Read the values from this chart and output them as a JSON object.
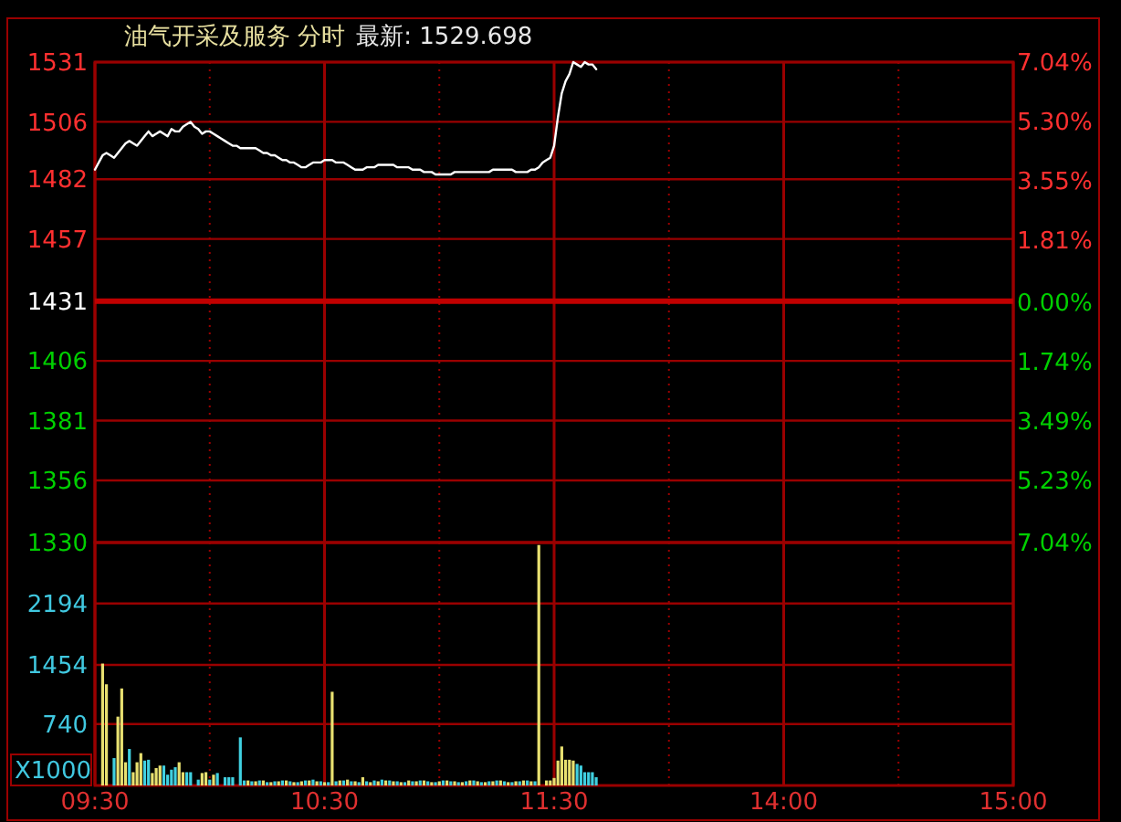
{
  "chart_data": [
    {
      "type": "line",
      "title": "油气开采及服务 分时",
      "subtitle": "最新: 1529.698",
      "categories": [
        null,
        null,
        null,
        null,
        null,
        null,
        null,
        null,
        null,
        null,
        null,
        null,
        null,
        null,
        null,
        null,
        null,
        null,
        null,
        null,
        null,
        null,
        null,
        null,
        null,
        null,
        null,
        null,
        null,
        null,
        null,
        null,
        null,
        null,
        null,
        null,
        null,
        null,
        null,
        null,
        null,
        null,
        null,
        null,
        null,
        null,
        null,
        null,
        null,
        null,
        null,
        null,
        null,
        null,
        null,
        null,
        null,
        null,
        null,
        null,
        null,
        null,
        null,
        null,
        null,
        null,
        null,
        null,
        null,
        null,
        null,
        null,
        null,
        null,
        null,
        null,
        null,
        null,
        null,
        null,
        null,
        null,
        null,
        null,
        null,
        null,
        null,
        null,
        null,
        null,
        null,
        null,
        null,
        null,
        null,
        null,
        null,
        null,
        null,
        null,
        null,
        null,
        null,
        null,
        null,
        null,
        null,
        null,
        null,
        null,
        null,
        null,
        null,
        null,
        null,
        null,
        null,
        null,
        null,
        null,
        null,
        null,
        null,
        null,
        null,
        null,
        null,
        null,
        null,
        null,
        null,
        null,
        null,
        null,
        null,
        null,
        null,
        null,
        null,
        null,
        null,
        null,
        null,
        null,
        null,
        null,
        null,
        null,
        null,
        null,
        null,
        null,
        null,
        null,
        null,
        null,
        null,
        null,
        null,
        null,
        null,
        null,
        null,
        null,
        null,
        null,
        null,
        null,
        null,
        null,
        null,
        null,
        null,
        null,
        null,
        null,
        null,
        null,
        null,
        null,
        null,
        null,
        null,
        null,
        null,
        null,
        null,
        null,
        null,
        null,
        null,
        null,
        null,
        null,
        null,
        null,
        null,
        null,
        null,
        null,
        null,
        null,
        null,
        null,
        null,
        null,
        null,
        null,
        null,
        null,
        null,
        null,
        null,
        null,
        null,
        null,
        null,
        null,
        null,
        null,
        null,
        null,
        null,
        null,
        null,
        null,
        null,
        null,
        null,
        null,
        null,
        null,
        null,
        null,
        null,
        null,
        null,
        null,
        null,
        null,
        null
      ],
      "series": [
        {
          "color": "#ffffff",
          "values": [
            1486,
            1489,
            1492,
            1493,
            1492,
            1491,
            1493,
            1495,
            1497,
            1498,
            1497,
            1496,
            1498,
            1500,
            1502,
            1500,
            1501,
            1502,
            1501,
            1500,
            1503,
            1502,
            1502,
            1504,
            1505,
            1506,
            1504,
            1503,
            1501,
            1502,
            1502,
            1501,
            1500,
            1499,
            1498,
            1497,
            1496,
            1496,
            1495,
            1495,
            1495,
            1495,
            1495,
            1494,
            1493,
            1493,
            1492,
            1492,
            1491,
            1490,
            1490,
            1489,
            1489,
            1488,
            1487,
            1487,
            1488,
            1489,
            1489,
            1489,
            1490,
            1490,
            1490,
            1489,
            1489,
            1489,
            1488,
            1487,
            1486,
            1486,
            1486,
            1487,
            1487,
            1487,
            1488,
            1488,
            1488,
            1488,
            1488,
            1487,
            1487,
            1487,
            1487,
            1486,
            1486,
            1486,
            1485,
            1485,
            1485,
            1484,
            1484,
            1484,
            1484,
            1484,
            1485,
            1485,
            1485,
            1485,
            1485,
            1485,
            1485,
            1485,
            1485,
            1485,
            1486,
            1486,
            1486,
            1486,
            1486,
            1486,
            1485,
            1485,
            1485,
            1485,
            1486,
            1486,
            1487,
            1489,
            1490,
            1491,
            1496,
            1508,
            1518,
            1523,
            1526,
            1531,
            1530,
            1529,
            1531,
            1530,
            1530,
            1528,
            null,
            null,
            null,
            null,
            null,
            null,
            null,
            null,
            null,
            null,
            null,
            null,
            null,
            null,
            null,
            null,
            null,
            null,
            null,
            null,
            null,
            null,
            null,
            null,
            null,
            null,
            null,
            null,
            null,
            null,
            null,
            null,
            null,
            null,
            null,
            null,
            null,
            null,
            null,
            null,
            null,
            null,
            null,
            null,
            null,
            null,
            null,
            null,
            null,
            null,
            null,
            null,
            null,
            null,
            null,
            null,
            null,
            null,
            null,
            null,
            null,
            null,
            null,
            null,
            null,
            null,
            null,
            null,
            null,
            null,
            null,
            null,
            null,
            null,
            null,
            null,
            null,
            null,
            null,
            null,
            null,
            null,
            null,
            null,
            null,
            null,
            null,
            null,
            null,
            null,
            null,
            null,
            null,
            null,
            null,
            null,
            null,
            null,
            null,
            null,
            null,
            null,
            null,
            null,
            null,
            null,
            null,
            null,
            null
          ]
        }
      ],
      "ylim": [
        1330,
        1531
      ],
      "yticks": [
        1330,
        1356,
        1381,
        1406,
        1431,
        1457,
        1482,
        1506,
        1531
      ],
      "y2lim": [
        -7.04,
        7.04
      ],
      "y2ticks": [
        {
          "value": -7.04,
          "label": "7.04%"
        },
        {
          "value": -5.23,
          "label": "5.23%"
        },
        {
          "value": -3.49,
          "label": "3.49%"
        },
        {
          "value": -1.74,
          "label": "1.74%"
        },
        {
          "value": 0,
          "label": "0.00%"
        },
        {
          "value": 1.81,
          "label": "1.81%"
        },
        {
          "value": 3.55,
          "label": "3.55%"
        },
        {
          "value": 5.3,
          "label": "5.30%"
        },
        {
          "value": 7.04,
          "label": "7.04%"
        }
      ],
      "ref_lines": [
        {
          "axis": "y",
          "value": 1431,
          "color": "#c00000"
        }
      ],
      "grid": true,
      "tick_labels": "y"
    },
    {
      "type": "bar",
      "ylabel": "X1000",
      "categories": [
        "09:30",
        null,
        null,
        null,
        null,
        null,
        null,
        null,
        null,
        null,
        null,
        null,
        null,
        null,
        null,
        null,
        null,
        null,
        null,
        null,
        null,
        null,
        null,
        null,
        null,
        null,
        null,
        null,
        null,
        null,
        null,
        null,
        null,
        null,
        null,
        null,
        null,
        null,
        null,
        null,
        null,
        null,
        null,
        null,
        null,
        null,
        null,
        null,
        null,
        null,
        null,
        null,
        null,
        null,
        null,
        null,
        null,
        null,
        null,
        null,
        "10:30",
        null,
        null,
        null,
        null,
        null,
        null,
        null,
        null,
        null,
        null,
        null,
        null,
        null,
        null,
        null,
        null,
        null,
        null,
        null,
        null,
        null,
        null,
        null,
        null,
        null,
        null,
        null,
        null,
        null,
        null,
        null,
        null,
        null,
        null,
        null,
        null,
        null,
        null,
        null,
        null,
        null,
        null,
        null,
        null,
        null,
        null,
        null,
        null,
        null,
        null,
        null,
        null,
        null,
        null,
        null,
        null,
        null,
        null,
        null,
        "11:30",
        null,
        null,
        null,
        null,
        null,
        null,
        null,
        null,
        null,
        null,
        null,
        null,
        null,
        null,
        null,
        null,
        null,
        null,
        null,
        null,
        null,
        null,
        null,
        null,
        null,
        null,
        null,
        null,
        null,
        null,
        null,
        null,
        null,
        null,
        null,
        null,
        null,
        null,
        null,
        null,
        null,
        null,
        null,
        null,
        null,
        null,
        null,
        null,
        null,
        null,
        null,
        null,
        null,
        null,
        null,
        null,
        null,
        null,
        null,
        "14:00",
        null,
        null,
        null,
        null,
        null,
        null,
        null,
        null,
        null,
        null,
        null,
        null,
        null,
        null,
        null,
        null,
        null,
        null,
        null,
        null,
        null,
        null,
        null,
        null,
        null,
        null,
        null,
        null,
        null,
        null,
        null,
        null,
        null,
        null,
        null,
        null,
        null,
        null,
        null,
        null,
        null,
        null,
        null,
        null,
        null,
        null,
        null,
        null,
        null,
        null,
        null,
        null,
        null,
        null,
        null,
        null,
        null,
        null,
        null,
        "15:00"
      ],
      "series": [
        {
          "color": "#e8e070",
          "values": [
            null,
            null,
            1470,
            1220,
            null,
            null,
            830,
            1170,
            280,
            null,
            160,
            280,
            390,
            null,
            null,
            150,
            210,
            240,
            null,
            null,
            null,
            null,
            280,
            160,
            null,
            null,
            null,
            null,
            150,
            160,
            null,
            130,
            null,
            null,
            null,
            null,
            null,
            null,
            null,
            null,
            60,
            null,
            50,
            null,
            60,
            null,
            40,
            null,
            50,
            null,
            60,
            null,
            40,
            null,
            50,
            null,
            60,
            null,
            50,
            null,
            40,
            null,
            1130,
            null,
            60,
            null,
            70,
            null,
            50,
            null,
            100,
            null,
            40,
            null,
            50,
            null,
            60,
            null,
            50,
            null,
            40,
            null,
            60,
            null,
            50,
            null,
            60,
            null,
            40,
            null,
            50,
            null,
            60,
            null,
            50,
            null,
            40,
            null,
            60,
            null,
            50,
            null,
            40,
            null,
            50,
            null,
            60,
            null,
            40,
            null,
            50,
            null,
            60,
            null,
            50,
            null,
            2900,
            null,
            60,
            60,
            90,
            300,
            470,
            310,
            310,
            300,
            null,
            null,
            null,
            null,
            null,
            null,
            null,
            null,
            null,
            null,
            null,
            null,
            null,
            null,
            null,
            null,
            null,
            null,
            null,
            null,
            null,
            null,
            null,
            null,
            null,
            null,
            null,
            null,
            null,
            null,
            null,
            null,
            null,
            null,
            null,
            null,
            null,
            null,
            null,
            null,
            null,
            null,
            null,
            null,
            null,
            null,
            null,
            null,
            null,
            null,
            null,
            null,
            null,
            null,
            null,
            null,
            null,
            null,
            null,
            null,
            null,
            null,
            null,
            null,
            null,
            null,
            null,
            null,
            null,
            null,
            null,
            null,
            null,
            null,
            null,
            null,
            null,
            null,
            null,
            null,
            null,
            null,
            null,
            null,
            null,
            null,
            null,
            null,
            null,
            null,
            null,
            null,
            null,
            null,
            null,
            null,
            null,
            null,
            null,
            null,
            null,
            null,
            null,
            null,
            null,
            null,
            null,
            null,
            null,
            null,
            null,
            null,
            null,
            null,
            null
          ]
        },
        {
          "color": "#40d0e0",
          "values": [
            null,
            null,
            null,
            null,
            null,
            330,
            null,
            null,
            null,
            440,
            null,
            null,
            null,
            300,
            310,
            null,
            null,
            null,
            240,
            130,
            190,
            220,
            null,
            null,
            160,
            160,
            null,
            70,
            null,
            null,
            70,
            null,
            150,
            null,
            100,
            100,
            100,
            null,
            580,
            60,
            null,
            50,
            null,
            60,
            null,
            40,
            null,
            50,
            null,
            60,
            null,
            50,
            null,
            40,
            null,
            60,
            null,
            70,
            null,
            50,
            null,
            40,
            null,
            50,
            null,
            60,
            null,
            50,
            null,
            40,
            null,
            50,
            null,
            60,
            null,
            70,
            null,
            60,
            null,
            50,
            null,
            40,
            null,
            50,
            null,
            60,
            null,
            50,
            null,
            40,
            null,
            60,
            null,
            50,
            null,
            40,
            null,
            50,
            null,
            60,
            null,
            40,
            null,
            50,
            null,
            60,
            null,
            50,
            null,
            40,
            null,
            50,
            null,
            60,
            null,
            50,
            null,
            null,
            null,
            null,
            null,
            null,
            null,
            null,
            null,
            null,
            260,
            240,
            160,
            160,
            160,
            100,
            null,
            null,
            null,
            null,
            null,
            null,
            null,
            null,
            null,
            null,
            null,
            null,
            null,
            null,
            null,
            null,
            null,
            null,
            null,
            null,
            null,
            null,
            null,
            null,
            null,
            null,
            null,
            null,
            null,
            null,
            null,
            null,
            null,
            null,
            null,
            null,
            null,
            null,
            null,
            null,
            null,
            null,
            null,
            null,
            null,
            null,
            null,
            null,
            null,
            null,
            null,
            null,
            null,
            null,
            null,
            null,
            null,
            null,
            null,
            null,
            null,
            null,
            null,
            null,
            null,
            null,
            null,
            null,
            null,
            null,
            null,
            null,
            null,
            null,
            null,
            null,
            null,
            null,
            null,
            null,
            null,
            null,
            null,
            null,
            null,
            null,
            null,
            null,
            null,
            null,
            null,
            null,
            null,
            null,
            null,
            null,
            null,
            null,
            null,
            null,
            null,
            null,
            null,
            null,
            null,
            null,
            null,
            null,
            null
          ]
        }
      ],
      "ylim": [
        0,
        2930
      ],
      "yticks": [
        740,
        1454,
        2194
      ],
      "grid": true
    }
  ]
}
